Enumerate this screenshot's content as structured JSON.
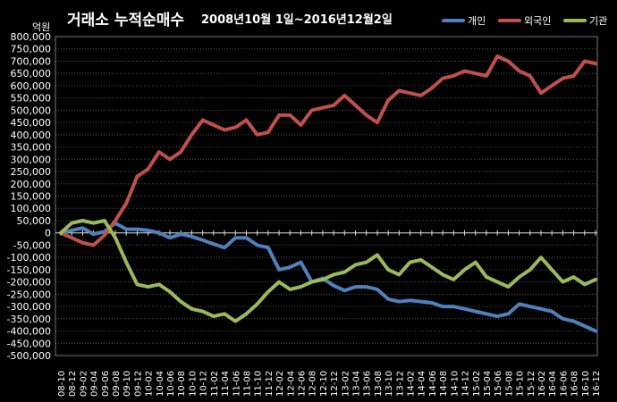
{
  "chart_data": {
    "type": "line",
    "title": "거래소 누적순매수",
    "subtitle": "2008년10월 1일~2016년12월2일",
    "ylabel": "억원",
    "xlabel": "",
    "ylim": [
      -500000,
      800000
    ],
    "yticks": [
      800000,
      750000,
      700000,
      650000,
      600000,
      550000,
      500000,
      450000,
      400000,
      350000,
      300000,
      250000,
      200000,
      150000,
      100000,
      50000,
      0,
      -50000,
      -100000,
      -150000,
      -200000,
      -250000,
      -300000,
      -350000,
      -400000,
      -450000,
      -500000
    ],
    "ytick_labels": [
      "800,000",
      "750,000",
      "700,000",
      "650,000",
      "600,000",
      "550,000",
      "500,000",
      "450,000",
      "400,000",
      "350,000",
      "300,000",
      "250,000",
      "200,000",
      "150,000",
      "100,000",
      "50,000",
      "0",
      "-50,000",
      "-100,000",
      "-150,000",
      "-200,000",
      "-250,000",
      "-300,000",
      "-350,000",
      "-400,000",
      "-450,000",
      "-500,000"
    ],
    "x": [
      "08-10",
      "08-12",
      "09-02",
      "09-04",
      "09-06",
      "09-08",
      "09-10",
      "09-12",
      "10-02",
      "10-04",
      "10-06",
      "10-08",
      "10-10",
      "10-12",
      "11-02",
      "11-04",
      "11-06",
      "11-08",
      "11-10",
      "11-12",
      "12-02",
      "12-04",
      "12-06",
      "12-08",
      "12-10",
      "12-12",
      "13-02",
      "13-04",
      "13-06",
      "13-08",
      "13-10",
      "13-12",
      "14-02",
      "14-04",
      "14-06",
      "14-08",
      "14-10",
      "14-12",
      "15-02",
      "15-04",
      "15-06",
      "15-08",
      "15-10",
      "15-12",
      "16-02",
      "16-04",
      "16-06",
      "16-08",
      "16-10",
      "16-12"
    ],
    "grid": true,
    "legend_position": "top-right",
    "series": [
      {
        "name": "개인",
        "color": "#4f81bd",
        "values": [
          0,
          10000,
          20000,
          -5000,
          5000,
          40000,
          15000,
          15000,
          10000,
          0,
          -20000,
          -5000,
          -15000,
          -30000,
          -45000,
          -60000,
          -20000,
          -20000,
          -50000,
          -60000,
          -150000,
          -140000,
          -120000,
          -200000,
          -185000,
          -215000,
          -235000,
          -220000,
          -220000,
          -230000,
          -270000,
          -280000,
          -275000,
          -280000,
          -285000,
          -300000,
          -300000,
          -310000,
          -320000,
          -330000,
          -340000,
          -330000,
          -290000,
          -300000,
          -310000,
          -320000,
          -350000,
          -360000,
          -380000,
          -400000
        ]
      },
      {
        "name": "외국인",
        "color": "#c0504d",
        "values": [
          0,
          -20000,
          -40000,
          -50000,
          -10000,
          50000,
          120000,
          230000,
          260000,
          330000,
          300000,
          330000,
          400000,
          460000,
          440000,
          420000,
          430000,
          460000,
          400000,
          410000,
          480000,
          480000,
          440000,
          500000,
          510000,
          520000,
          560000,
          520000,
          480000,
          450000,
          540000,
          580000,
          570000,
          560000,
          590000,
          630000,
          640000,
          660000,
          650000,
          640000,
          720000,
          700000,
          660000,
          640000,
          570000,
          600000,
          630000,
          640000,
          700000,
          690000
        ]
      },
      {
        "name": "기관",
        "color": "#9bbb59",
        "values": [
          0,
          40000,
          50000,
          40000,
          50000,
          -20000,
          -120000,
          -210000,
          -220000,
          -210000,
          -240000,
          -280000,
          -310000,
          -320000,
          -340000,
          -330000,
          -360000,
          -330000,
          -290000,
          -240000,
          -200000,
          -230000,
          -220000,
          -200000,
          -190000,
          -170000,
          -160000,
          -130000,
          -120000,
          -90000,
          -150000,
          -170000,
          -120000,
          -110000,
          -140000,
          -170000,
          -190000,
          -150000,
          -120000,
          -180000,
          -200000,
          -220000,
          -180000,
          -150000,
          -100000,
          -150000,
          -200000,
          -180000,
          -210000,
          -190000
        ]
      }
    ]
  }
}
